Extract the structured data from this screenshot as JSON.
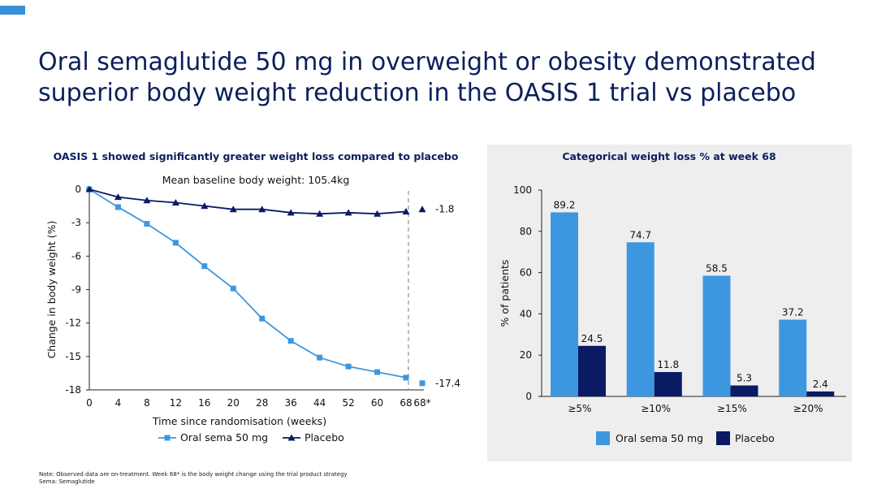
{
  "header": {
    "title_line1": "Oral semaglutide 50 mg in overweight or obesity demonstrated",
    "title_line2": "superior body weight reduction in the OASIS 1 trial vs placebo",
    "accent_color": "#3b8fd9"
  },
  "footnote": {
    "line1": "Note: Observed data are on-treatment. Week 68* is the body weight change using the trial product strategy",
    "line2": "Sema: Semaglutide"
  },
  "chart_data": [
    {
      "type": "line",
      "title": "OASIS 1 showed significantly greater weight loss compared to placebo",
      "subtitle": "Mean baseline body weight: 105.4kg",
      "xlabel": "Time since randomisation (weeks)",
      "ylabel": "Change in body weight (%)",
      "x": [
        0,
        4,
        8,
        12,
        16,
        20,
        28,
        36,
        44,
        52,
        60,
        68
      ],
      "x_ticks": [
        "0",
        "4",
        "8",
        "12",
        "16",
        "20",
        "28",
        "36",
        "44",
        "52",
        "60",
        "68",
        "68*"
      ],
      "y_ticks": [
        "0",
        "-3",
        "-6",
        "-9",
        "-12",
        "-15",
        "-18"
      ],
      "ylim": [
        -18,
        0
      ],
      "series": [
        {
          "name": "Oral sema 50 mg",
          "marker": "square",
          "color": "#3d97e0",
          "values": [
            0,
            -1.6,
            -3.1,
            -4.8,
            -6.9,
            -8.9,
            -11.6,
            -13.6,
            -15.1,
            -15.9,
            -16.4,
            -16.9
          ],
          "end_value": -17.4,
          "end_label": "-17.4"
        },
        {
          "name": "Placebo",
          "marker": "triangle",
          "color": "#0a1a63",
          "values": [
            0,
            -0.7,
            -1.0,
            -1.2,
            -1.5,
            -1.8,
            -1.8,
            -2.1,
            -2.2,
            -2.1,
            -2.2,
            -2.0
          ],
          "end_value": -1.8,
          "end_label": "-1.8"
        }
      ],
      "grid": false,
      "legend": "bottom"
    },
    {
      "type": "bar",
      "title": "Categorical weight loss % at week 68",
      "ylabel": "% of patients",
      "categories": [
        "≥5%",
        "≥10%",
        "≥15%",
        "≥20%"
      ],
      "y_ticks": [
        "0",
        "20",
        "40",
        "60",
        "80",
        "100"
      ],
      "ylim": [
        0,
        100
      ],
      "series": [
        {
          "name": "Oral sema 50 mg",
          "color": "#3d97e0",
          "values": [
            89.2,
            74.7,
            58.5,
            37.2
          ],
          "labels": [
            "89.2",
            "74.7",
            "58.5",
            "37.2"
          ]
        },
        {
          "name": "Placebo",
          "color": "#0a1a63",
          "values": [
            24.5,
            11.8,
            5.3,
            2.4
          ],
          "labels": [
            "24.5",
            "11.8",
            "5.3",
            "2.4"
          ]
        }
      ],
      "grid": false,
      "legend": "bottom"
    }
  ]
}
